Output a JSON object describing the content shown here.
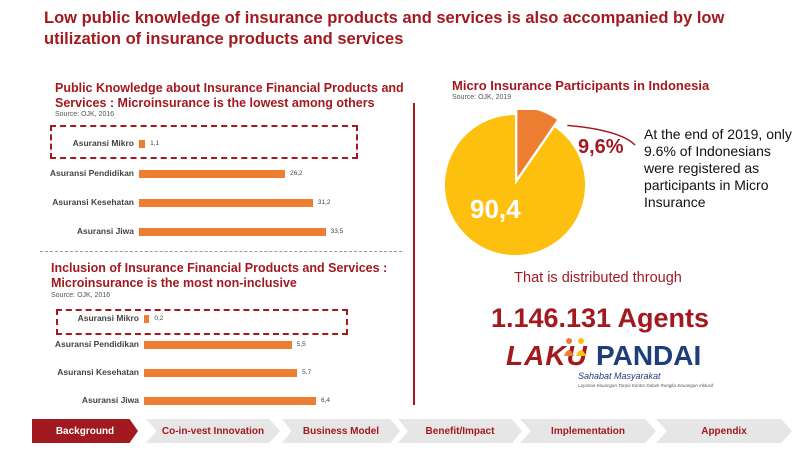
{
  "page": {
    "title": "Low public knowledge of insurance products and services is also accompanied by low utilization of insurance products and services"
  },
  "knowledge": {
    "title": "Public Knowledge about Insurance Financial Products and Services : Microinsurance is the lowest among others",
    "source": "Source: OJK, 2016",
    "max": 35,
    "bars": [
      {
        "label": "Asuransi Mikro",
        "value": 1.1,
        "display": "1,1"
      },
      {
        "label": "Asuransi Pendidikan",
        "value": 26.2,
        "display": "26,2"
      },
      {
        "label": "Asuransi Kesehatan",
        "value": 31.2,
        "display": "31,2"
      },
      {
        "label": "Asuransi Jiwa",
        "value": 33.5,
        "display": "33,5"
      }
    ]
  },
  "inclusion": {
    "title": "Inclusion of Insurance Financial Products and Services : Microinsurance is the most non-inclusive",
    "source": "Source: OJK, 2016",
    "max": 6.7,
    "bars": [
      {
        "label": "Asuransi Mikro",
        "value": 0.2,
        "display": "0,2"
      },
      {
        "label": "Asuransi Pendidikan",
        "value": 5.5,
        "display": "5,5"
      },
      {
        "label": "Asuransi Kesehatan",
        "value": 5.7,
        "display": "5,7"
      },
      {
        "label": "Asuransi Jiwa",
        "value": 6.4,
        "display": "6,4"
      }
    ]
  },
  "micro": {
    "title": "Micro Insurance Participants in Indonesia",
    "source": "Source: OJK, 2019",
    "small_label": "9,6%",
    "big_label": "90,4",
    "description": "At the end of 2019, only 9.6% of Indonesians were registered as participants in Micro Insurance",
    "colors": {
      "big": "#fdc00f",
      "small": "#ed7d31"
    }
  },
  "chart_data": [
    {
      "type": "bar",
      "orientation": "horizontal",
      "title": "Public Knowledge about Insurance Financial Products and Services : Microinsurance is the lowest among others",
      "categories": [
        "Asuransi Mikro",
        "Asuransi Pendidikan",
        "Asuransi Kesehatan",
        "Asuransi Jiwa"
      ],
      "values": [
        1.1,
        26.2,
        31.2,
        33.5
      ]
    },
    {
      "type": "bar",
      "orientation": "horizontal",
      "title": "Inclusion of Insurance Financial Products and Services : Microinsurance is the most non-inclusive",
      "categories": [
        "Asuransi Mikro",
        "Asuransi Pendidikan",
        "Asuransi Kesehatan",
        "Asuransi Jiwa"
      ],
      "values": [
        0.2,
        5.5,
        5.7,
        6.4
      ]
    },
    {
      "type": "pie",
      "title": "Micro Insurance Participants in Indonesia",
      "labels": [
        "9,6%",
        "90,4"
      ],
      "values": [
        9.6,
        90.4
      ]
    }
  ],
  "distribution": {
    "label": "That is distributed through",
    "agents": "1.146.131 Agents"
  },
  "logo": {
    "word1": "LAKU",
    "word2": "PANDAI",
    "tagline": "Sahabat Masyarakat",
    "subtagline": "Layanan Keuangan Tanpa Kantor Dalam Rangka Keuangan Inklusif"
  },
  "nav": {
    "items": [
      {
        "label": "Background",
        "active": true
      },
      {
        "label": "Co-in-vest Innovation",
        "active": false
      },
      {
        "label": "Business Model",
        "active": false
      },
      {
        "label": "Benefit/Impact",
        "active": false
      },
      {
        "label": "Implementation",
        "active": false
      },
      {
        "label": "Appendix",
        "active": false
      }
    ],
    "colors": {
      "active_bg": "#a2191f",
      "active_text": "#ffffff",
      "inactive_bg": "#e6e6e6",
      "inactive_text": "#a2191f"
    }
  }
}
